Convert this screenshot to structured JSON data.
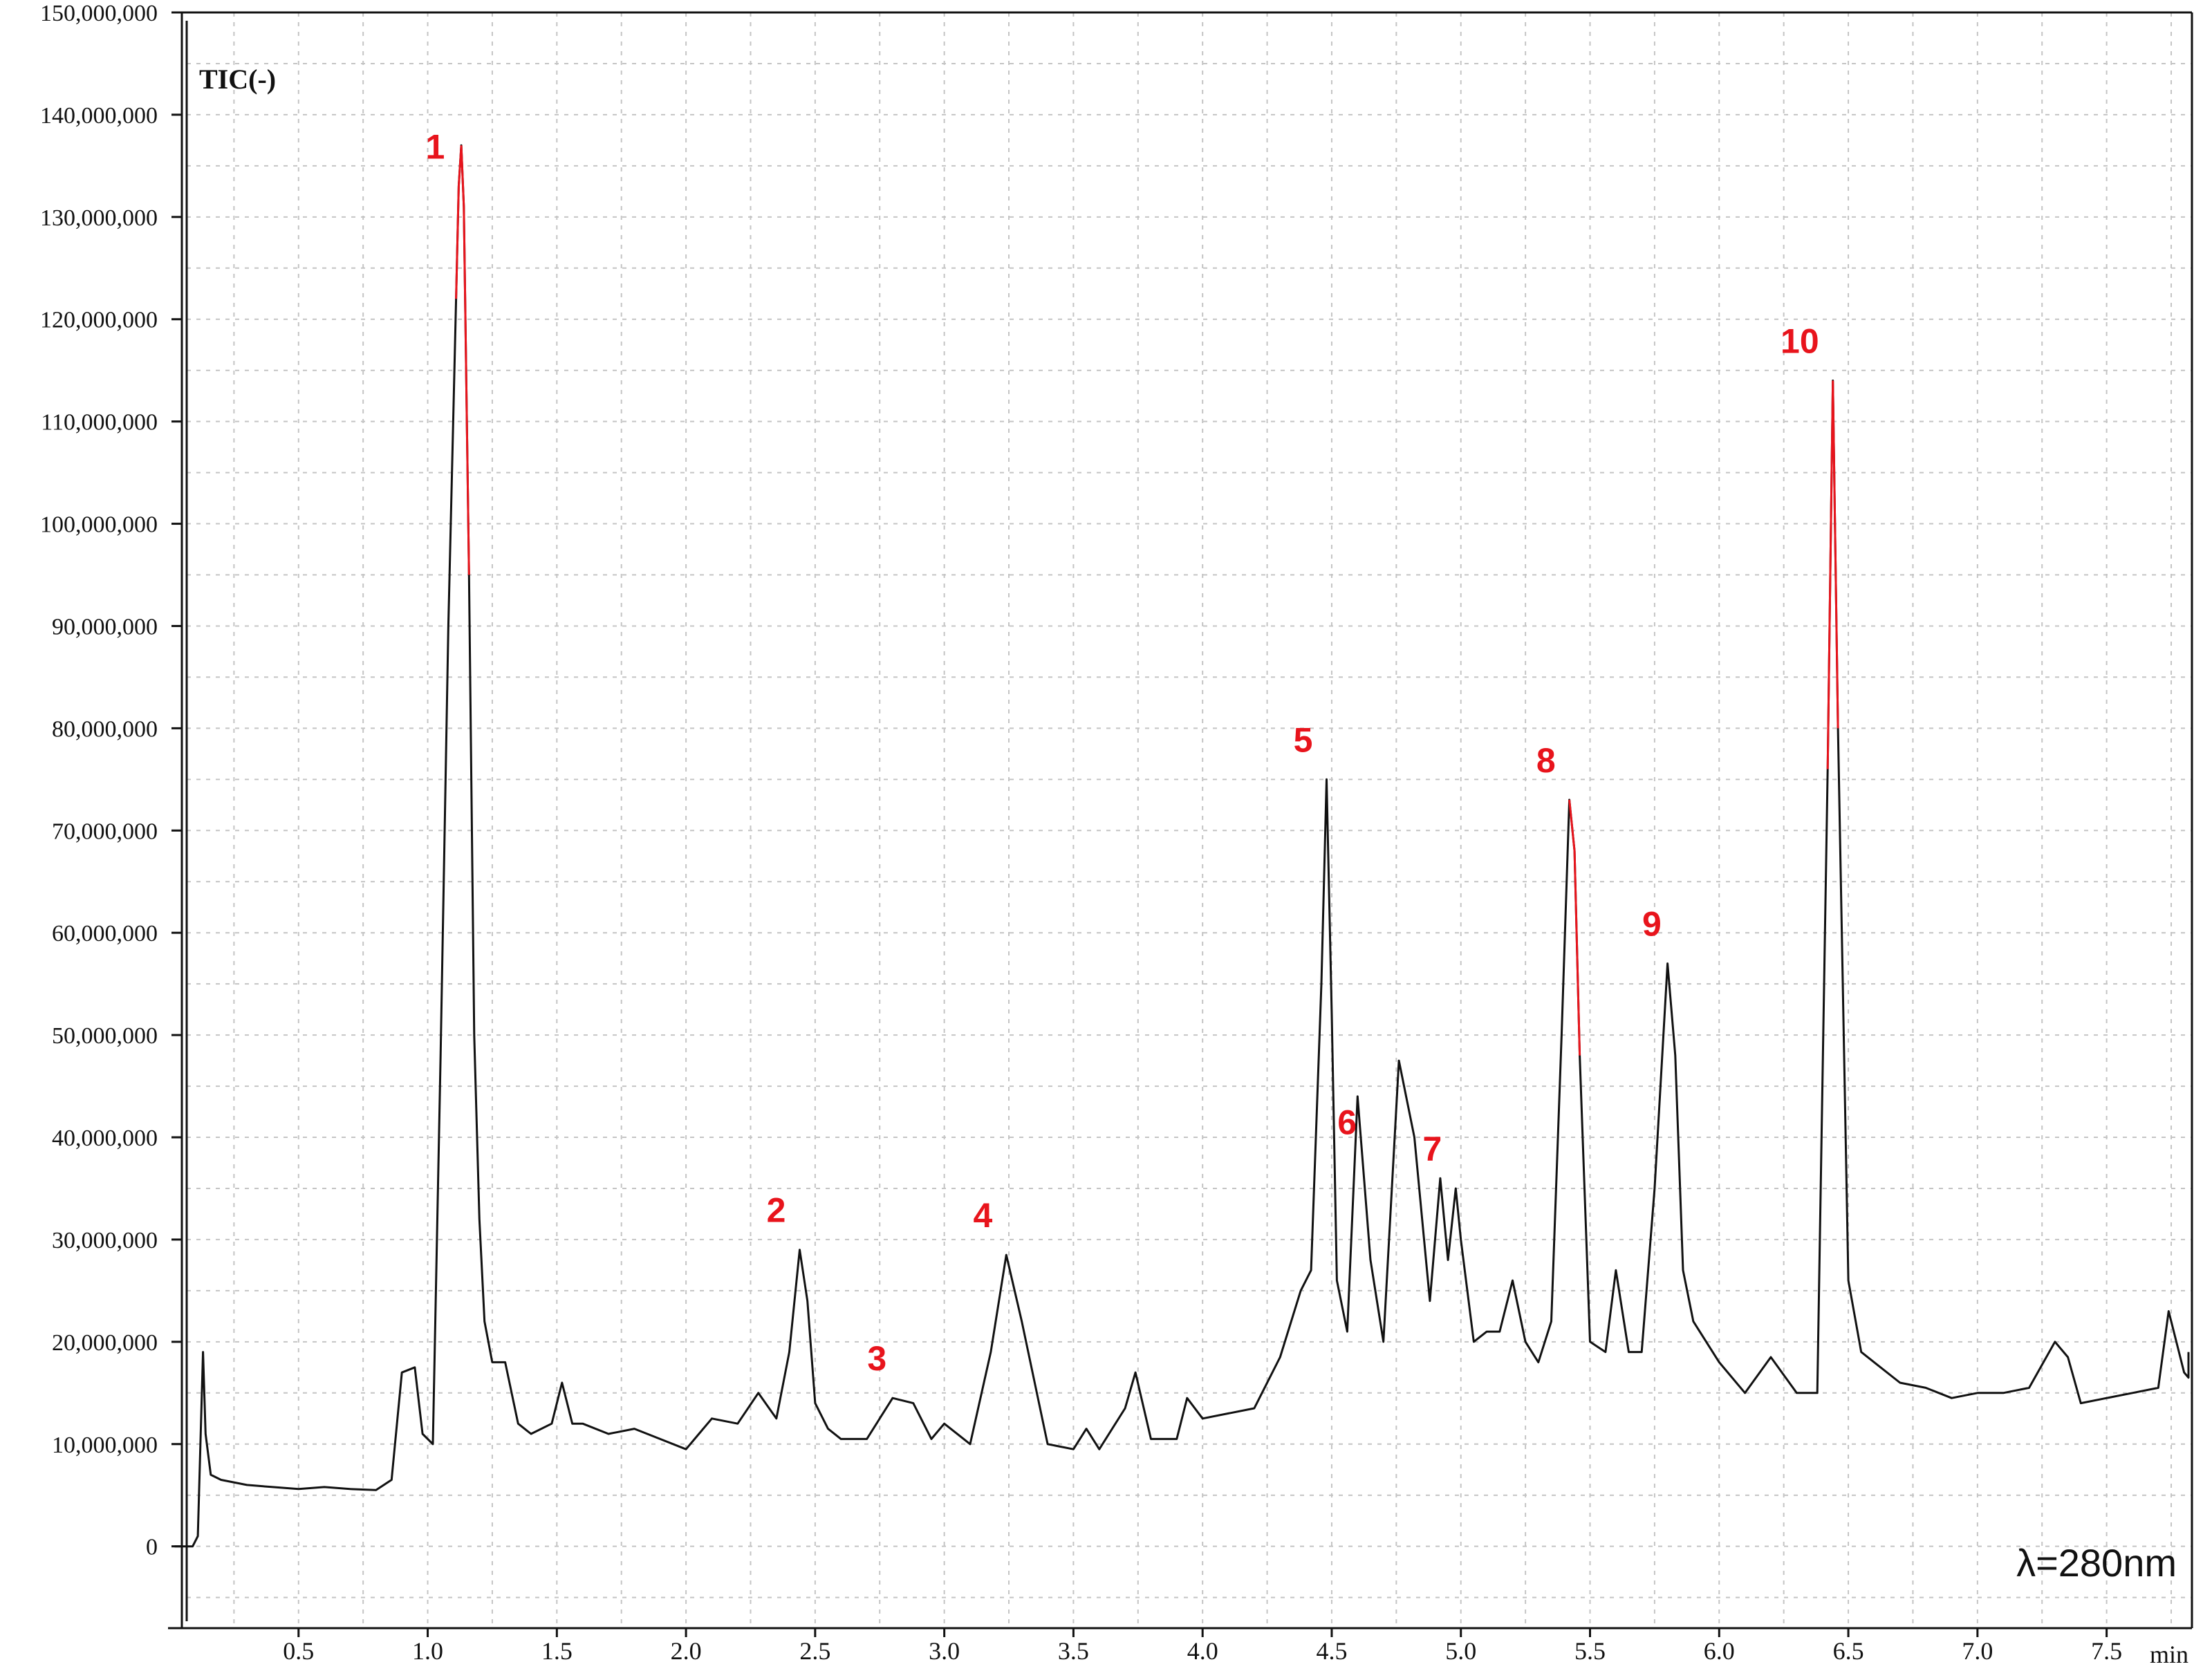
{
  "chart_data": {
    "type": "line",
    "title": "TIC(-)",
    "annotation": "λ=280nm",
    "xlabel": "min",
    "ylabel": "",
    "xlim": [
      0.0,
      7.75
    ],
    "ylim": [
      -8000000,
      150000000
    ],
    "x_ticks": [
      "0.5",
      "1.0",
      "1.5",
      "2.0",
      "2.5",
      "3.0",
      "3.5",
      "4.0",
      "4.5",
      "5.0",
      "5.5",
      "6.0",
      "6.5",
      "7.0",
      "7.5"
    ],
    "y_ticks": [
      "0",
      "10,000,000",
      "20,000,000",
      "30,000,000",
      "40,000,000",
      "50,000,000",
      "60,000,000",
      "70,000,000",
      "80,000,000",
      "90,000,000",
      "100,000,000",
      "110,000,000",
      "120,000,000",
      "130,000,000",
      "140,000,000",
      "150,000,000"
    ],
    "grid": true,
    "colors": {
      "trace": "#111111",
      "peak_highlight": "#e8141c",
      "peak_labels": "#e8141c",
      "grid": "#c4c4c4"
    },
    "series": [
      {
        "x": [
          0.02,
          0.09,
          0.11,
          0.13,
          0.14,
          0.16,
          0.2,
          0.3,
          0.4,
          0.5,
          0.6,
          0.7,
          0.8,
          0.86,
          0.9,
          0.95,
          0.98,
          1.02,
          1.05,
          1.08,
          1.11,
          1.12,
          1.13,
          1.14,
          1.16,
          1.18,
          1.2,
          1.22,
          1.25,
          1.3,
          1.35,
          1.4,
          1.48,
          1.52,
          1.56,
          1.6,
          1.7,
          1.8,
          1.9,
          2.0,
          2.1,
          2.2,
          2.28,
          2.35,
          2.4,
          2.44,
          2.47,
          2.5,
          2.55,
          2.6,
          2.7,
          2.8,
          2.88,
          2.95,
          3.0,
          3.1,
          3.18,
          3.24,
          3.3,
          3.4,
          3.5,
          3.55,
          3.6,
          3.7,
          3.74,
          3.8,
          3.9,
          3.94,
          4.0,
          4.1,
          4.2,
          4.3,
          4.38,
          4.42,
          4.46,
          4.48,
          4.5,
          4.52,
          4.56,
          4.6,
          4.65,
          4.7,
          4.76,
          4.82,
          4.88,
          4.92,
          4.95,
          4.98,
          5.0,
          5.05,
          5.1,
          5.15,
          5.2,
          5.25,
          5.3,
          5.35,
          5.39,
          5.42,
          5.44,
          5.46,
          5.5,
          5.56,
          5.6,
          5.65,
          5.7,
          5.75,
          5.8,
          5.83,
          5.86,
          5.9,
          6.0,
          6.1,
          6.2,
          6.3,
          6.38,
          6.42,
          6.44,
          6.46,
          6.5,
          6.55,
          6.6,
          6.7,
          6.8,
          6.9,
          7.0,
          7.1,
          7.2,
          7.3,
          7.35,
          7.4,
          7.5,
          7.6,
          7.7,
          7.74,
          7.8,
          7.9,
          8.0,
          8.1
        ],
        "y": [
          0,
          0,
          1000000,
          19000000,
          11000000,
          7000000,
          6500000,
          6000000,
          5800000,
          5600000,
          5800000,
          5600000,
          5500000,
          6500000,
          17000000,
          17500000,
          11000000,
          10000000,
          48000000,
          90000000,
          122000000,
          133000000,
          137000000,
          131000000,
          95000000,
          50000000,
          32000000,
          22000000,
          18000000,
          18000000,
          12000000,
          11000000,
          12000000,
          16000000,
          12000000,
          12000000,
          11000000,
          11500000,
          10500000,
          9500000,
          12500000,
          12000000,
          15000000,
          12500000,
          19000000,
          29000000,
          24000000,
          14000000,
          11500000,
          10500000,
          10500000,
          14500000,
          14000000,
          10500000,
          12000000,
          10000000,
          19000000,
          28500000,
          22000000,
          10000000,
          9500000,
          11500000,
          9500000,
          13500000,
          17000000,
          10500000,
          10500000,
          14500000,
          12500000,
          13000000,
          13500000,
          18500000,
          25000000,
          27000000,
          55000000,
          75000000,
          52000000,
          26000000,
          21000000,
          44000000,
          28000000,
          20000000,
          47500000,
          40000000,
          24000000,
          36000000,
          28000000,
          35000000,
          30000000,
          20000000,
          21000000,
          21000000,
          26000000,
          20000000,
          18000000,
          22000000,
          50000000,
          73000000,
          68000000,
          48000000,
          20000000,
          19000000,
          27000000,
          19000000,
          19000000,
          35000000,
          57000000,
          48000000,
          27000000,
          22000000,
          18000000,
          15000000,
          18500000,
          15000000,
          15000000,
          76000000,
          114000000,
          80000000,
          26000000,
          19000000,
          18000000,
          16000000,
          15500000,
          14500000,
          15000000,
          15000000,
          15500000,
          20000000,
          18500000,
          14000000,
          14500000,
          15000000,
          15500000,
          23000000,
          17000000,
          16500000,
          17000000,
          19000000
        ],
        "highlights": [
          [
            1.125,
            1.15
          ],
          [
            5.41,
            5.44
          ],
          [
            6.42,
            6.445
          ]
        ]
      }
    ],
    "peaks": [
      {
        "label": "1",
        "x": 1.12
      },
      {
        "label": "2",
        "x": 2.44
      },
      {
        "label": "3",
        "x": 2.83
      },
      {
        "label": "4",
        "x": 3.24
      },
      {
        "label": "5",
        "x": 4.48
      },
      {
        "label": "6",
        "x": 4.65
      },
      {
        "label": "7",
        "x": 4.98
      },
      {
        "label": "8",
        "x": 5.42
      },
      {
        "label": "9",
        "x": 5.83
      },
      {
        "label": "10",
        "x": 6.44
      }
    ]
  }
}
